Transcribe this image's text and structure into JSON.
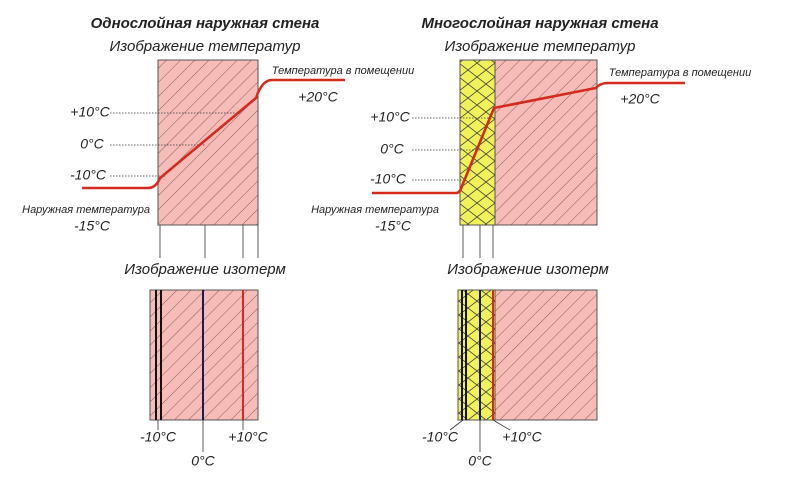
{
  "left": {
    "title": "Однослойная наружная стена",
    "temp_title": "Изображение температур",
    "inside_label": "Температура в помещении",
    "inside_value": "+20°C",
    "outside_label": "Наружная температура",
    "outside_value": "-15°C",
    "levels": [
      "+10°C",
      "0°C",
      "-10°C"
    ],
    "isotherm_title": "Изображение изотерм",
    "isotherm_labels": [
      "-10°C",
      "0°C",
      "+10°C"
    ]
  },
  "right": {
    "title": "Многослойная наружная стена",
    "temp_title": "Изображение температур",
    "inside_label": "Температура в помещении",
    "inside_value": "+20°C",
    "outside_label": "Наружная температура",
    "outside_value": "-15°C",
    "levels": [
      "+10°C",
      "0°C",
      "-10°C"
    ],
    "isotherm_title": "Изображение изотерм",
    "isotherm_labels": [
      "-10°C",
      "0°C",
      "+10°C"
    ]
  }
}
